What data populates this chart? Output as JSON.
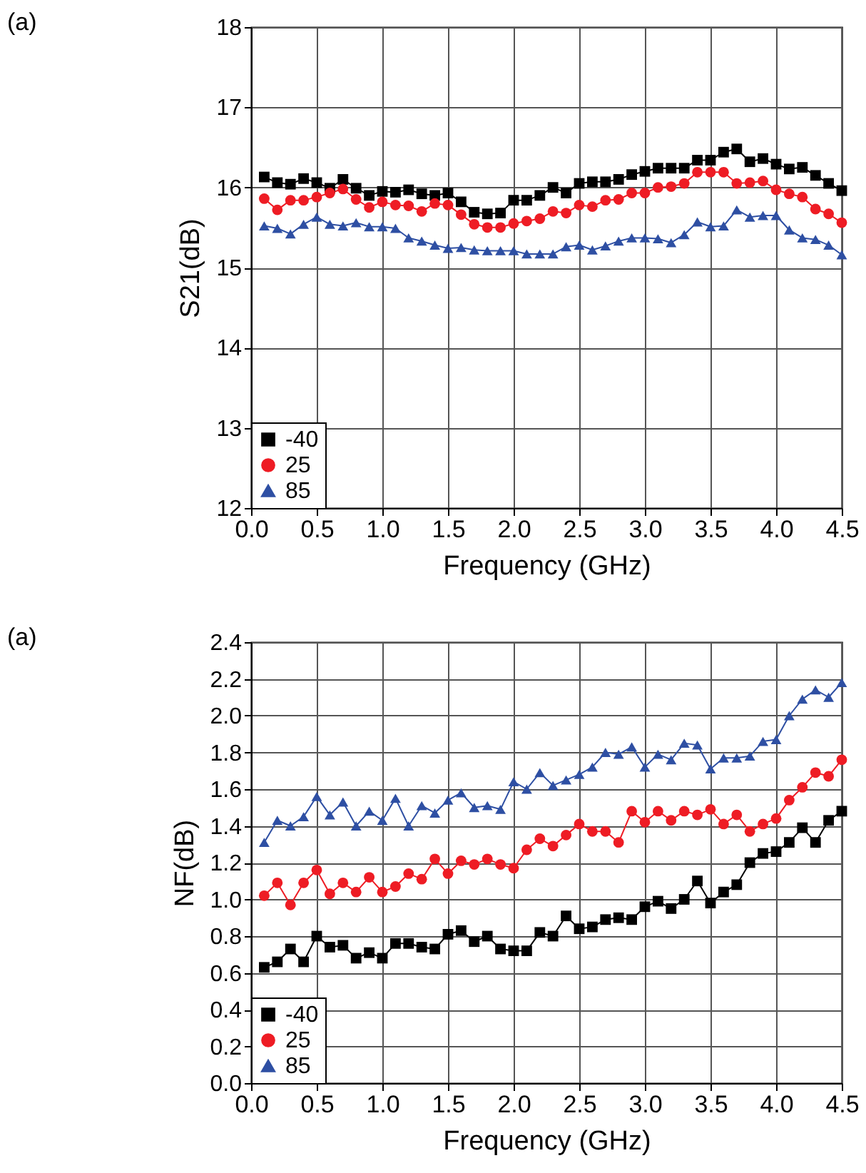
{
  "chart_data": [
    {
      "type": "line",
      "annotations": [
        "(a)"
      ],
      "xlabel": "Frequency (GHz)",
      "ylabel": "S21(dB)",
      "x": [
        0.1,
        0.2,
        0.3,
        0.4,
        0.5,
        0.6,
        0.7,
        0.8,
        0.9,
        1.0,
        1.1,
        1.2,
        1.3,
        1.4,
        1.5,
        1.6,
        1.7,
        1.8,
        1.9,
        2.0,
        2.1,
        2.2,
        2.3,
        2.4,
        2.5,
        2.6,
        2.7,
        2.8,
        2.9,
        3.0,
        3.1,
        3.2,
        3.3,
        3.4,
        3.5,
        3.6,
        3.7,
        3.8,
        3.9,
        4.0,
        4.1,
        4.2,
        4.3,
        4.4,
        4.5
      ],
      "xlim": [
        0,
        4.5
      ],
      "xticks": [
        {
          "value": 0,
          "label": "0.0"
        },
        {
          "value": 0.5,
          "label": "0.5"
        },
        {
          "value": 1,
          "label": "1.0"
        },
        {
          "value": 1.5,
          "label": "1.5"
        },
        {
          "value": 2,
          "label": "2.0"
        },
        {
          "value": 2.5,
          "label": "2.5"
        },
        {
          "value": 3,
          "label": "3.0"
        },
        {
          "value": 3.5,
          "label": "3.5"
        },
        {
          "value": 4,
          "label": "4.0"
        },
        {
          "value": 4.5,
          "label": "4.5"
        }
      ],
      "ylim": [
        12,
        18
      ],
      "yticks": [
        12,
        13,
        14,
        15,
        16,
        17,
        18
      ],
      "grid": true,
      "legend": "bottom left",
      "series": [
        {
          "name": "-40",
          "color": "#000000",
          "marker": "square",
          "values": [
            16.13,
            16.06,
            16.04,
            16.11,
            16.06,
            15.99,
            16.1,
            15.99,
            15.9,
            15.95,
            15.94,
            15.97,
            15.92,
            15.9,
            15.93,
            15.82,
            15.69,
            15.67,
            15.68,
            15.84,
            15.84,
            15.9,
            16.0,
            15.93,
            16.05,
            16.07,
            16.07,
            16.1,
            16.16,
            16.2,
            16.24,
            16.24,
            16.24,
            16.34,
            16.34,
            16.44,
            16.48,
            16.32,
            16.36,
            16.29,
            16.23,
            16.25,
            16.15,
            16.05,
            15.96
          ]
        },
        {
          "name": "25",
          "color": "#ee1c24",
          "marker": "circle",
          "values": [
            15.86,
            15.72,
            15.84,
            15.84,
            15.88,
            15.93,
            15.98,
            15.85,
            15.75,
            15.82,
            15.78,
            15.77,
            15.7,
            15.8,
            15.78,
            15.66,
            15.54,
            15.5,
            15.5,
            15.55,
            15.58,
            15.61,
            15.7,
            15.68,
            15.78,
            15.76,
            15.84,
            15.85,
            15.93,
            15.93,
            16.0,
            16.01,
            16.05,
            16.19,
            16.19,
            16.19,
            16.05,
            16.06,
            16.08,
            15.97,
            15.92,
            15.88,
            15.73,
            15.67,
            15.56
          ]
        },
        {
          "name": "85",
          "color": "#2e4fa3",
          "marker": "triangle",
          "values": [
            15.52,
            15.49,
            15.42,
            15.54,
            15.63,
            15.54,
            15.52,
            15.56,
            15.51,
            15.51,
            15.49,
            15.37,
            15.33,
            15.28,
            15.24,
            15.25,
            15.22,
            15.21,
            15.21,
            15.21,
            15.17,
            15.17,
            15.17,
            15.26,
            15.28,
            15.22,
            15.27,
            15.33,
            15.37,
            15.37,
            15.36,
            15.31,
            15.41,
            15.57,
            15.51,
            15.52,
            15.72,
            15.63,
            15.65,
            15.65,
            15.47,
            15.37,
            15.35,
            15.28,
            15.16
          ]
        }
      ]
    },
    {
      "type": "line",
      "annotations": [
        "(a)"
      ],
      "xlabel": "Frequency (GHz)",
      "ylabel": "NF(dB)",
      "x": [
        0.1,
        0.2,
        0.3,
        0.4,
        0.5,
        0.6,
        0.7,
        0.8,
        0.9,
        1.0,
        1.1,
        1.2,
        1.3,
        1.4,
        1.5,
        1.6,
        1.7,
        1.8,
        1.9,
        2.0,
        2.1,
        2.2,
        2.3,
        2.4,
        2.5,
        2.6,
        2.7,
        2.8,
        2.9,
        3.0,
        3.1,
        3.2,
        3.3,
        3.4,
        3.5,
        3.6,
        3.7,
        3.8,
        3.9,
        4.0,
        4.1,
        4.2,
        4.3,
        4.4,
        4.5
      ],
      "xlim": [
        0,
        4.5
      ],
      "xticks": [
        {
          "value": 0,
          "label": "0.0"
        },
        {
          "value": 0.5,
          "label": "0.5"
        },
        {
          "value": 1,
          "label": "1.0"
        },
        {
          "value": 1.5,
          "label": "1.5"
        },
        {
          "value": 2,
          "label": "2.0"
        },
        {
          "value": 2.5,
          "label": "2.5"
        },
        {
          "value": 3,
          "label": "3.0"
        },
        {
          "value": 3.5,
          "label": "3.5"
        },
        {
          "value": 4,
          "label": "4.0"
        },
        {
          "value": 4.5,
          "label": "4.5"
        }
      ],
      "ylim": [
        0,
        2.4
      ],
      "yticks": [
        {
          "value": 0,
          "label": "0.0"
        },
        0.2,
        0.4,
        0.6,
        0.8,
        {
          "value": 1,
          "label": "1.0"
        },
        1.2,
        1.4,
        1.6,
        1.8,
        {
          "value": 2,
          "label": "2.0"
        },
        2.2,
        2.4
      ],
      "grid": true,
      "legend": "bottom left",
      "series": [
        {
          "name": "-40",
          "color": "#000000",
          "marker": "square",
          "values": [
            0.63,
            0.66,
            0.73,
            0.66,
            0.8,
            0.74,
            0.75,
            0.68,
            0.71,
            0.68,
            0.76,
            0.76,
            0.74,
            0.73,
            0.81,
            0.83,
            0.77,
            0.8,
            0.73,
            0.72,
            0.72,
            0.82,
            0.8,
            0.91,
            0.84,
            0.85,
            0.89,
            0.9,
            0.89,
            0.96,
            0.99,
            0.95,
            1.0,
            1.1,
            0.98,
            1.04,
            1.08,
            1.2,
            1.25,
            1.26,
            1.31,
            1.39,
            1.31,
            1.43,
            1.48
          ]
        },
        {
          "name": "25",
          "color": "#ee1c24",
          "marker": "circle",
          "values": [
            1.02,
            1.09,
            0.97,
            1.09,
            1.16,
            1.03,
            1.09,
            1.04,
            1.12,
            1.04,
            1.07,
            1.14,
            1.11,
            1.22,
            1.14,
            1.21,
            1.19,
            1.22,
            1.19,
            1.17,
            1.27,
            1.33,
            1.29,
            1.35,
            1.41,
            1.37,
            1.37,
            1.31,
            1.48,
            1.42,
            1.48,
            1.43,
            1.48,
            1.46,
            1.49,
            1.41,
            1.46,
            1.37,
            1.41,
            1.44,
            1.54,
            1.61,
            1.69,
            1.67,
            1.76
          ]
        },
        {
          "name": "85",
          "color": "#2e4fa3",
          "marker": "triangle",
          "values": [
            1.31,
            1.43,
            1.4,
            1.45,
            1.56,
            1.46,
            1.53,
            1.4,
            1.48,
            1.43,
            1.55,
            1.4,
            1.51,
            1.47,
            1.54,
            1.58,
            1.5,
            1.51,
            1.49,
            1.64,
            1.6,
            1.69,
            1.62,
            1.65,
            1.68,
            1.72,
            1.8,
            1.79,
            1.83,
            1.72,
            1.79,
            1.76,
            1.85,
            1.84,
            1.71,
            1.77,
            1.77,
            1.78,
            1.86,
            1.87,
            2.0,
            2.09,
            2.14,
            2.1,
            2.18
          ]
        }
      ]
    }
  ]
}
